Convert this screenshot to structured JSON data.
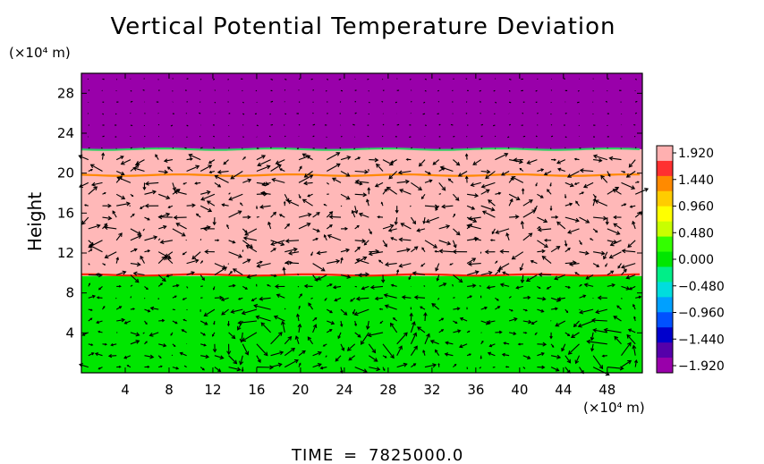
{
  "chart_data": {
    "type": "heatmap",
    "title": "Vertical Potential Temperature Deviation",
    "ylabel": "Height",
    "xlabel": "",
    "y_units": "(×10⁴ m)",
    "x_units": "(×10⁴ m)",
    "xlim": [
      0,
      51.2
    ],
    "ylim": [
      0,
      30
    ],
    "x_ticks": [
      "4",
      "8",
      "12",
      "16",
      "20",
      "24",
      "28",
      "32",
      "36",
      "40",
      "44",
      "48"
    ],
    "y_ticks": [
      "4",
      "8",
      "12",
      "16",
      "20",
      "24",
      "28"
    ],
    "layers": [
      {
        "y_from": 0,
        "y_to": 9.7,
        "value": 0.0,
        "color": "#00e600"
      },
      {
        "y_from": 9.7,
        "y_to": 22.4,
        "value": 1.92,
        "color": "#ffb8b8"
      },
      {
        "y_from": 22.4,
        "y_to": 30,
        "value": -1.92,
        "color": "#9900aa"
      }
    ],
    "interfaces": [
      {
        "y": 9.8,
        "color": "#ff2000"
      },
      {
        "y": 19.8,
        "color": "#ff8800"
      },
      {
        "y": 22.4,
        "color": "#33cc66"
      }
    ],
    "colorbar": {
      "labels": [
        "1.920",
        "1.440",
        "0.960",
        "0.480",
        "0.000",
        "−0.480",
        "−0.960",
        "−1.440",
        "−1.920"
      ],
      "colors": [
        "#ffb0b0",
        "#ff3030",
        "#ff8a00",
        "#ffcc00",
        "#ffff00",
        "#c8ff00",
        "#33ff00",
        "#00e600",
        "#00ee88",
        "#00dddd",
        "#00a0ff",
        "#0050ff",
        "#0000cc",
        "#5500aa",
        "#9900aa"
      ]
    },
    "wind_vectors": true
  },
  "footer": {
    "time_label": "TIME",
    "time_sep": "=",
    "time_value": "7825000.0"
  }
}
